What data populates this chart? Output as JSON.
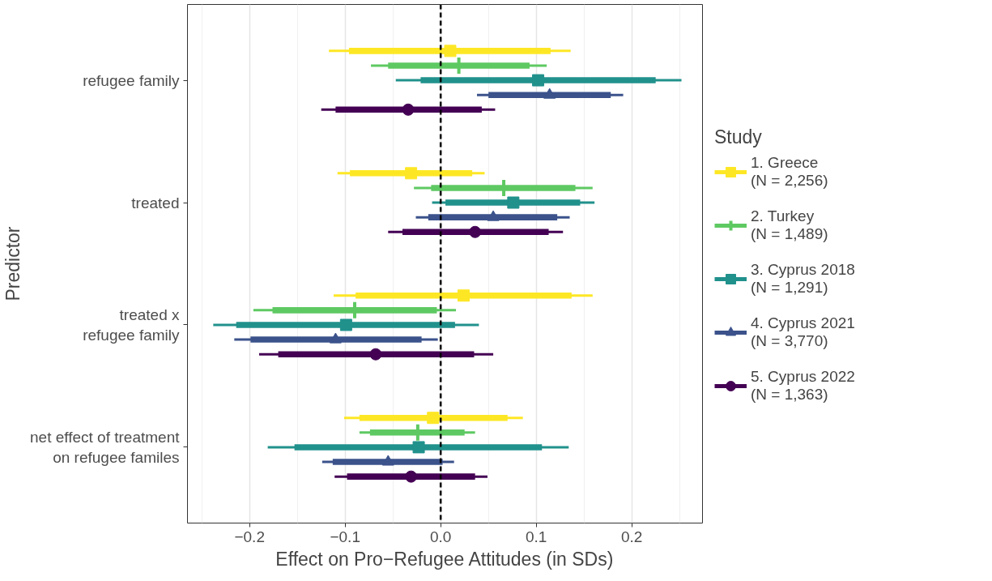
{
  "chart_data": {
    "type": "scatter",
    "orientation": "horizontal",
    "xlabel": "Effect on Pro−Refugee Attitudes (in SDs)",
    "ylabel": "Predictor",
    "legend_title": "Study",
    "categories": [
      "refugee family",
      "treated",
      "treated x\nrefugee family",
      "net effect of treatment\non refugee familes"
    ],
    "xlim": [
      -0.265,
      0.274
    ],
    "xticks": [
      {
        "value": -0.2,
        "label": "−0.2"
      },
      {
        "value": -0.1,
        "label": "−0.1"
      },
      {
        "value": 0.0,
        "label": "0.0"
      },
      0.1,
      0.2
    ],
    "grid": "x",
    "legend": "right",
    "ref_lines": [
      {
        "axis": "x",
        "value": 0,
        "color": "#000000",
        "line_style": "dashed"
      }
    ],
    "series": [
      {
        "name": "1. Greece\n(N = 2,256)",
        "color": "#fde725",
        "marker": "square",
        "values": [
          0.01,
          -0.031,
          0.024,
          -0.008
        ],
        "errors": [
          [
            -0.117,
            0.136
          ],
          [
            -0.108,
            0.046
          ],
          [
            -0.112,
            0.159
          ],
          [
            -0.101,
            0.086
          ]
        ]
      },
      {
        "type": "bar",
        "color": "#fde725",
        "base": [
          -0.096,
          -0.095,
          -0.089,
          -0.085
        ],
        "values": [
          0.211,
          0.128,
          0.226,
          0.155
        ]
      },
      {
        "name": "2. Turkey\n(N = 1,489)",
        "color": "#5ec962",
        "marker": "cross",
        "values": [
          0.019,
          0.066,
          -0.09,
          -0.024
        ],
        "errors": [
          [
            -0.073,
            0.111
          ],
          [
            -0.028,
            0.159
          ],
          [
            -0.196,
            0.016
          ],
          [
            -0.085,
            0.036
          ]
        ]
      },
      {
        "type": "bar",
        "color": "#5ec962",
        "base": [
          -0.055,
          -0.01,
          -0.176,
          -0.074
        ],
        "values": [
          0.148,
          0.151,
          0.172,
          0.099
        ]
      },
      {
        "name": "3. Cyprus 2018\n(N = 1,291)",
        "color": "#21918c",
        "marker": "square",
        "values": [
          0.102,
          0.076,
          -0.099,
          -0.023
        ],
        "errors": [
          [
            -0.047,
            0.252
          ],
          [
            -0.009,
            0.161
          ],
          [
            -0.238,
            0.04
          ],
          [
            -0.181,
            0.134
          ]
        ]
      },
      {
        "type": "bar",
        "color": "#21918c",
        "base": [
          -0.021,
          0.005,
          -0.214,
          -0.153
        ],
        "values": [
          0.246,
          0.141,
          0.229,
          0.259
        ]
      },
      {
        "name": "4. Cyprus 2021\n(N = 3,770)",
        "color": "#3b528b",
        "marker": "triangle",
        "values": [
          0.114,
          0.055,
          -0.11,
          -0.055
        ],
        "errors": [
          [
            0.038,
            0.191
          ],
          [
            -0.026,
            0.135
          ],
          [
            -0.216,
            -0.003
          ],
          [
            -0.124,
            0.014
          ]
        ]
      },
      {
        "type": "bar",
        "color": "#3b528b",
        "base": [
          0.05,
          -0.013,
          -0.199,
          -0.113
        ],
        "values": [
          0.128,
          0.135,
          0.179,
          0.115
        ]
      },
      {
        "name": "5. Cyprus 2022\n(N = 1,363)",
        "color": "#440154",
        "marker": "circle",
        "values": [
          -0.034,
          0.036,
          -0.068,
          -0.031
        ],
        "errors": [
          [
            -0.125,
            0.057
          ],
          [
            -0.055,
            0.128
          ],
          [
            -0.19,
            0.055
          ],
          [
            -0.111,
            0.049
          ]
        ]
      },
      {
        "type": "bar",
        "color": "#440154",
        "base": [
          -0.11,
          -0.04,
          -0.17,
          -0.098
        ],
        "values": [
          0.153,
          0.153,
          0.205,
          0.134
        ]
      }
    ]
  }
}
